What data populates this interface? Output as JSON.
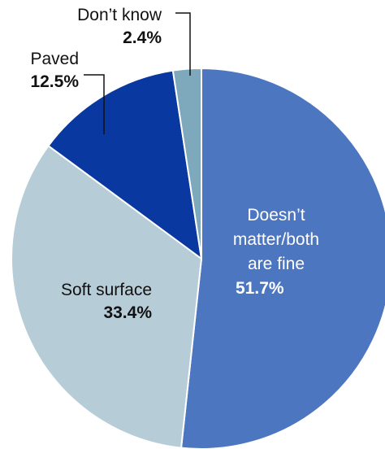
{
  "chart_data": {
    "type": "pie",
    "title": "",
    "slices": [
      {
        "label_lines": [
          "Doesn’t",
          "matter/both",
          "are fine"
        ],
        "value_label": "51.7%",
        "value": 51.7,
        "color": "#4d76c0",
        "text_color": "#ffffff"
      },
      {
        "label_lines": [
          "Soft surface"
        ],
        "value_label": "33.4%",
        "value": 33.4,
        "color": "#b6cdd8",
        "text_color": "#111111"
      },
      {
        "label_lines": [
          "Paved"
        ],
        "value_label": "12.5%",
        "value": 12.5,
        "color": "#0838a0",
        "text_color": "#111111"
      },
      {
        "label_lines": [
          "Don’t know"
        ],
        "value_label": "2.4%",
        "value": 2.4,
        "color": "#7ea8bc",
        "text_color": "#111111"
      }
    ],
    "start_angle_deg": 0,
    "direction": "clockwise",
    "slice_border_color": "#ffffff",
    "leader_line_color": "#111111"
  }
}
